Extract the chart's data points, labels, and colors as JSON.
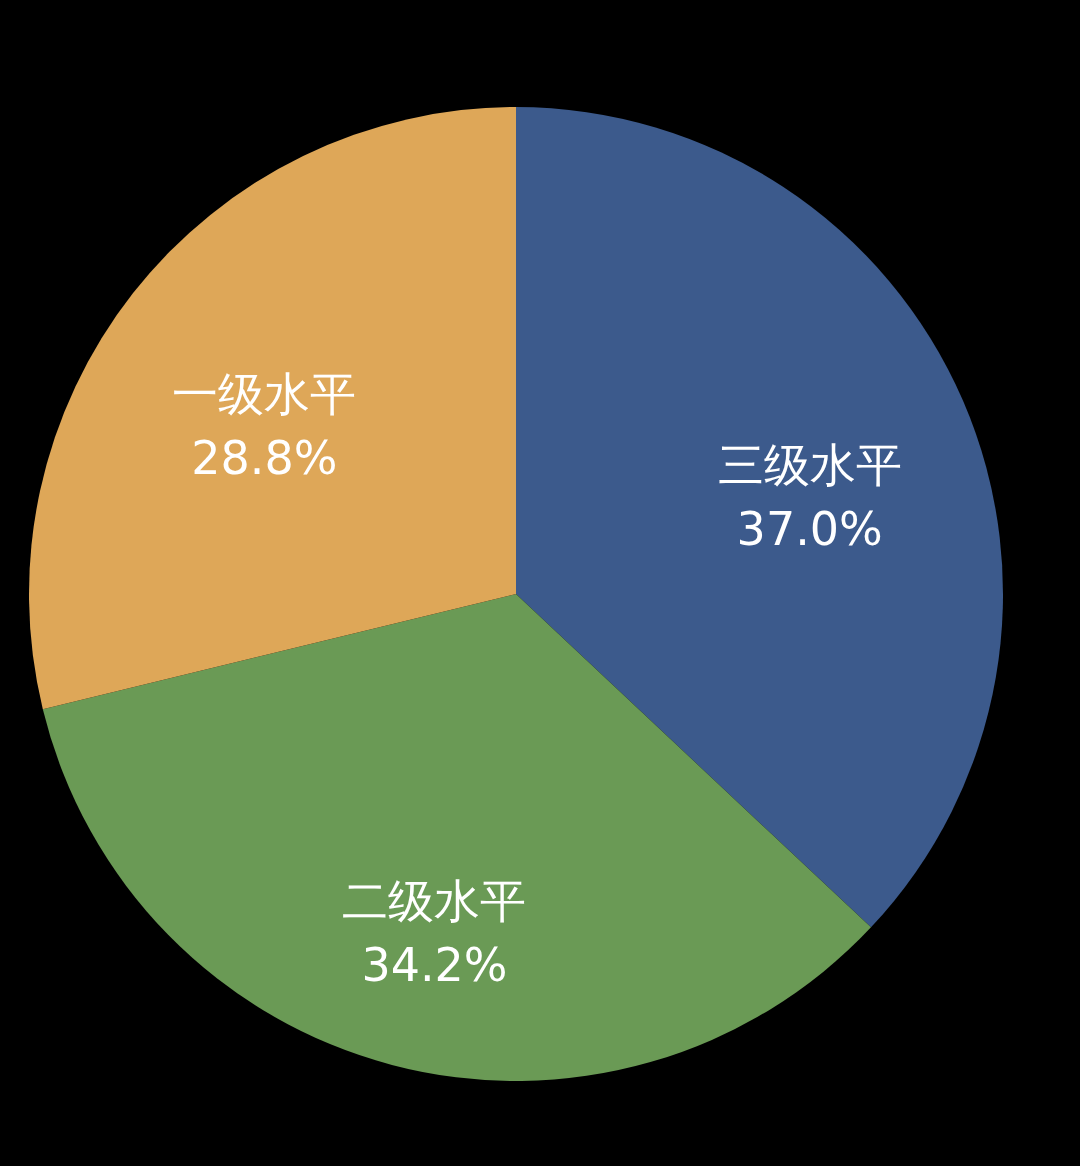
{
  "chart_data": {
    "type": "pie",
    "categories": [
      "三级水平",
      "二级水平",
      "一级水平"
    ],
    "values": [
      37.0,
      34.2,
      28.8
    ],
    "colors": [
      "#3c5a8c",
      "#6a9a55",
      "#dea758"
    ],
    "value_labels": [
      "37.0%",
      "34.2%",
      "28.8%"
    ]
  }
}
